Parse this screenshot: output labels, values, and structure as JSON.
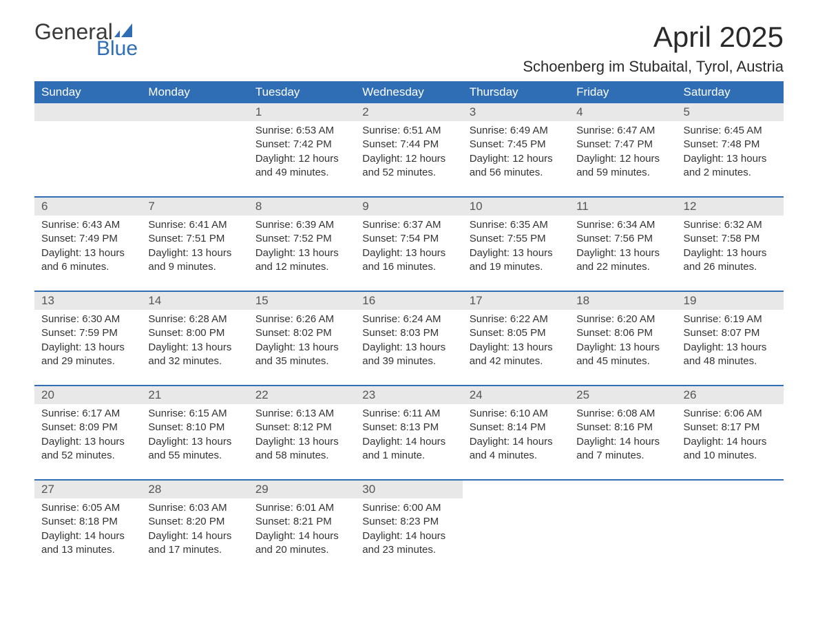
{
  "logo": {
    "text_general": "General",
    "text_blue": "Blue",
    "icon_color": "#2f6eb5"
  },
  "title": "April 2025",
  "location": "Schoenberg im Stubaital, Tyrol, Austria",
  "colors": {
    "header_bg": "#2f6eb5",
    "header_text": "#ffffff",
    "daynum_bg": "#e8e8e8",
    "daynum_text": "#555555",
    "body_text": "#333333",
    "row_border": "#2f6eb5"
  },
  "weekdays": [
    "Sunday",
    "Monday",
    "Tuesday",
    "Wednesday",
    "Thursday",
    "Friday",
    "Saturday"
  ],
  "weeks": [
    [
      null,
      null,
      {
        "day": "1",
        "sunrise": "Sunrise: 6:53 AM",
        "sunset": "Sunset: 7:42 PM",
        "daylight1": "Daylight: 12 hours",
        "daylight2": "and 49 minutes."
      },
      {
        "day": "2",
        "sunrise": "Sunrise: 6:51 AM",
        "sunset": "Sunset: 7:44 PM",
        "daylight1": "Daylight: 12 hours",
        "daylight2": "and 52 minutes."
      },
      {
        "day": "3",
        "sunrise": "Sunrise: 6:49 AM",
        "sunset": "Sunset: 7:45 PM",
        "daylight1": "Daylight: 12 hours",
        "daylight2": "and 56 minutes."
      },
      {
        "day": "4",
        "sunrise": "Sunrise: 6:47 AM",
        "sunset": "Sunset: 7:47 PM",
        "daylight1": "Daylight: 12 hours",
        "daylight2": "and 59 minutes."
      },
      {
        "day": "5",
        "sunrise": "Sunrise: 6:45 AM",
        "sunset": "Sunset: 7:48 PM",
        "daylight1": "Daylight: 13 hours",
        "daylight2": "and 2 minutes."
      }
    ],
    [
      {
        "day": "6",
        "sunrise": "Sunrise: 6:43 AM",
        "sunset": "Sunset: 7:49 PM",
        "daylight1": "Daylight: 13 hours",
        "daylight2": "and 6 minutes."
      },
      {
        "day": "7",
        "sunrise": "Sunrise: 6:41 AM",
        "sunset": "Sunset: 7:51 PM",
        "daylight1": "Daylight: 13 hours",
        "daylight2": "and 9 minutes."
      },
      {
        "day": "8",
        "sunrise": "Sunrise: 6:39 AM",
        "sunset": "Sunset: 7:52 PM",
        "daylight1": "Daylight: 13 hours",
        "daylight2": "and 12 minutes."
      },
      {
        "day": "9",
        "sunrise": "Sunrise: 6:37 AM",
        "sunset": "Sunset: 7:54 PM",
        "daylight1": "Daylight: 13 hours",
        "daylight2": "and 16 minutes."
      },
      {
        "day": "10",
        "sunrise": "Sunrise: 6:35 AM",
        "sunset": "Sunset: 7:55 PM",
        "daylight1": "Daylight: 13 hours",
        "daylight2": "and 19 minutes."
      },
      {
        "day": "11",
        "sunrise": "Sunrise: 6:34 AM",
        "sunset": "Sunset: 7:56 PM",
        "daylight1": "Daylight: 13 hours",
        "daylight2": "and 22 minutes."
      },
      {
        "day": "12",
        "sunrise": "Sunrise: 6:32 AM",
        "sunset": "Sunset: 7:58 PM",
        "daylight1": "Daylight: 13 hours",
        "daylight2": "and 26 minutes."
      }
    ],
    [
      {
        "day": "13",
        "sunrise": "Sunrise: 6:30 AM",
        "sunset": "Sunset: 7:59 PM",
        "daylight1": "Daylight: 13 hours",
        "daylight2": "and 29 minutes."
      },
      {
        "day": "14",
        "sunrise": "Sunrise: 6:28 AM",
        "sunset": "Sunset: 8:00 PM",
        "daylight1": "Daylight: 13 hours",
        "daylight2": "and 32 minutes."
      },
      {
        "day": "15",
        "sunrise": "Sunrise: 6:26 AM",
        "sunset": "Sunset: 8:02 PM",
        "daylight1": "Daylight: 13 hours",
        "daylight2": "and 35 minutes."
      },
      {
        "day": "16",
        "sunrise": "Sunrise: 6:24 AM",
        "sunset": "Sunset: 8:03 PM",
        "daylight1": "Daylight: 13 hours",
        "daylight2": "and 39 minutes."
      },
      {
        "day": "17",
        "sunrise": "Sunrise: 6:22 AM",
        "sunset": "Sunset: 8:05 PM",
        "daylight1": "Daylight: 13 hours",
        "daylight2": "and 42 minutes."
      },
      {
        "day": "18",
        "sunrise": "Sunrise: 6:20 AM",
        "sunset": "Sunset: 8:06 PM",
        "daylight1": "Daylight: 13 hours",
        "daylight2": "and 45 minutes."
      },
      {
        "day": "19",
        "sunrise": "Sunrise: 6:19 AM",
        "sunset": "Sunset: 8:07 PM",
        "daylight1": "Daylight: 13 hours",
        "daylight2": "and 48 minutes."
      }
    ],
    [
      {
        "day": "20",
        "sunrise": "Sunrise: 6:17 AM",
        "sunset": "Sunset: 8:09 PM",
        "daylight1": "Daylight: 13 hours",
        "daylight2": "and 52 minutes."
      },
      {
        "day": "21",
        "sunrise": "Sunrise: 6:15 AM",
        "sunset": "Sunset: 8:10 PM",
        "daylight1": "Daylight: 13 hours",
        "daylight2": "and 55 minutes."
      },
      {
        "day": "22",
        "sunrise": "Sunrise: 6:13 AM",
        "sunset": "Sunset: 8:12 PM",
        "daylight1": "Daylight: 13 hours",
        "daylight2": "and 58 minutes."
      },
      {
        "day": "23",
        "sunrise": "Sunrise: 6:11 AM",
        "sunset": "Sunset: 8:13 PM",
        "daylight1": "Daylight: 14 hours",
        "daylight2": "and 1 minute."
      },
      {
        "day": "24",
        "sunrise": "Sunrise: 6:10 AM",
        "sunset": "Sunset: 8:14 PM",
        "daylight1": "Daylight: 14 hours",
        "daylight2": "and 4 minutes."
      },
      {
        "day": "25",
        "sunrise": "Sunrise: 6:08 AM",
        "sunset": "Sunset: 8:16 PM",
        "daylight1": "Daylight: 14 hours",
        "daylight2": "and 7 minutes."
      },
      {
        "day": "26",
        "sunrise": "Sunrise: 6:06 AM",
        "sunset": "Sunset: 8:17 PM",
        "daylight1": "Daylight: 14 hours",
        "daylight2": "and 10 minutes."
      }
    ],
    [
      {
        "day": "27",
        "sunrise": "Sunrise: 6:05 AM",
        "sunset": "Sunset: 8:18 PM",
        "daylight1": "Daylight: 14 hours",
        "daylight2": "and 13 minutes."
      },
      {
        "day": "28",
        "sunrise": "Sunrise: 6:03 AM",
        "sunset": "Sunset: 8:20 PM",
        "daylight1": "Daylight: 14 hours",
        "daylight2": "and 17 minutes."
      },
      {
        "day": "29",
        "sunrise": "Sunrise: 6:01 AM",
        "sunset": "Sunset: 8:21 PM",
        "daylight1": "Daylight: 14 hours",
        "daylight2": "and 20 minutes."
      },
      {
        "day": "30",
        "sunrise": "Sunrise: 6:00 AM",
        "sunset": "Sunset: 8:23 PM",
        "daylight1": "Daylight: 14 hours",
        "daylight2": "and 23 minutes."
      },
      null,
      null,
      null
    ]
  ]
}
